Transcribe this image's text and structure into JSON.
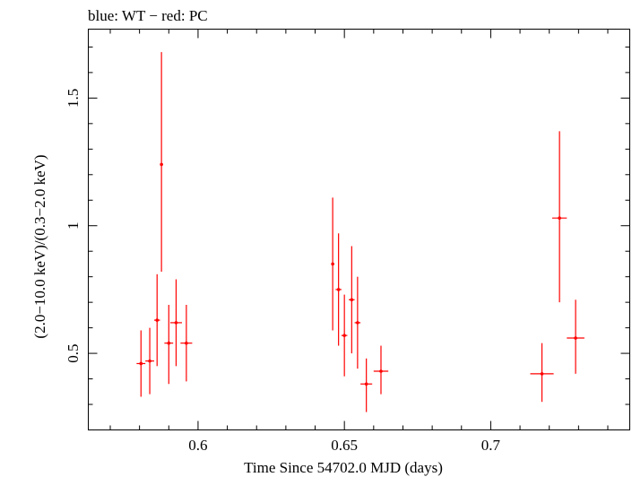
{
  "chart_data": {
    "type": "scatter",
    "title": "blue: WT − red: PC",
    "xlabel": "Time Since 54702.0 MJD (days)",
    "ylabel": "(2.0−10.0 keV)/(0.3−2.0 keV)",
    "xlim": [
      0.5625,
      0.7475
    ],
    "ylim": [
      0.2,
      1.77
    ],
    "xticks": [
      {
        "value": 0.6,
        "label": "0.6"
      },
      {
        "value": 0.65,
        "label": "0.65"
      },
      {
        "value": 0.7,
        "label": "0.7"
      }
    ],
    "yticks": [
      {
        "value": 0.5,
        "label": "0.5"
      },
      {
        "value": 1.0,
        "label": "1"
      },
      {
        "value": 1.5,
        "label": "1.5"
      }
    ],
    "x_minor_step": 0.01,
    "y_minor_step": 0.1,
    "grid": false,
    "series": [
      {
        "name": "PC",
        "color": "#ff0000",
        "points": [
          {
            "x": 0.5805,
            "xerr": 0.0015,
            "y": 0.46,
            "ylo": 0.33,
            "yhi": 0.59
          },
          {
            "x": 0.5835,
            "xerr": 0.0015,
            "y": 0.47,
            "ylo": 0.34,
            "yhi": 0.6
          },
          {
            "x": 0.586,
            "xerr": 0.001,
            "y": 0.63,
            "ylo": 0.45,
            "yhi": 0.81
          },
          {
            "x": 0.5875,
            "xerr": 0.0005,
            "y": 1.24,
            "ylo": 0.82,
            "yhi": 1.68
          },
          {
            "x": 0.59,
            "xerr": 0.0015,
            "y": 0.54,
            "ylo": 0.38,
            "yhi": 0.69
          },
          {
            "x": 0.5925,
            "xerr": 0.002,
            "y": 0.62,
            "ylo": 0.45,
            "yhi": 0.79
          },
          {
            "x": 0.596,
            "xerr": 0.002,
            "y": 0.54,
            "ylo": 0.39,
            "yhi": 0.69
          },
          {
            "x": 0.646,
            "xerr": 0.0005,
            "y": 0.85,
            "ylo": 0.59,
            "yhi": 1.11
          },
          {
            "x": 0.648,
            "xerr": 0.001,
            "y": 0.75,
            "ylo": 0.53,
            "yhi": 0.97
          },
          {
            "x": 0.65,
            "xerr": 0.001,
            "y": 0.57,
            "ylo": 0.41,
            "yhi": 0.73
          },
          {
            "x": 0.6525,
            "xerr": 0.001,
            "y": 0.71,
            "ylo": 0.5,
            "yhi": 0.92
          },
          {
            "x": 0.6545,
            "xerr": 0.001,
            "y": 0.62,
            "ylo": 0.44,
            "yhi": 0.8
          },
          {
            "x": 0.6575,
            "xerr": 0.002,
            "y": 0.38,
            "ylo": 0.27,
            "yhi": 0.48
          },
          {
            "x": 0.6625,
            "xerr": 0.0025,
            "y": 0.43,
            "ylo": 0.34,
            "yhi": 0.53
          },
          {
            "x": 0.7175,
            "xerr": 0.004,
            "y": 0.42,
            "ylo": 0.31,
            "yhi": 0.54
          },
          {
            "x": 0.7235,
            "xerr": 0.0025,
            "y": 1.03,
            "ylo": 0.7,
            "yhi": 1.37
          },
          {
            "x": 0.729,
            "xerr": 0.003,
            "y": 0.56,
            "ylo": 0.42,
            "yhi": 0.71
          }
        ]
      }
    ]
  }
}
